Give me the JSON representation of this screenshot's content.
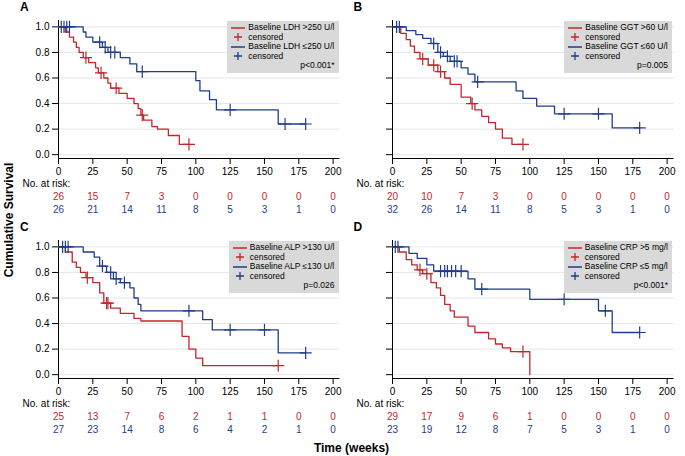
{
  "y_label": "Cumulative Survival",
  "x_label": "Time (weeks)",
  "chart_data": [
    {
      "type": "step",
      "panel": "A",
      "annotation": "p<0.001*",
      "legend": "top-right",
      "grid": true,
      "xlim": [
        0,
        205
      ],
      "xticks": [
        0,
        25,
        50,
        75,
        100,
        125,
        150,
        175,
        200
      ],
      "ylim": [
        -0.03,
        1.05
      ],
      "yticks": [
        {
          "value": 0,
          "label": "0.0"
        },
        {
          "value": 0.2,
          "label": "0.2"
        },
        {
          "value": 0.4,
          "label": "0.4"
        },
        {
          "value": 0.6,
          "label": "0.6"
        },
        {
          "value": 0.8,
          "label": "0.8"
        },
        {
          "value": 1,
          "label": "1.0"
        }
      ],
      "at_risk": {
        "label": "No. at risk:",
        "x": [
          0,
          25,
          50,
          75,
          100,
          125,
          150,
          175,
          200
        ]
      },
      "series": [
        {
          "name": "Baseline LDH >250 U/l",
          "color": "#c1272d",
          "x": [
            0,
            5,
            8,
            11,
            13,
            15,
            18,
            22,
            27,
            29,
            33,
            36,
            38,
            44,
            50,
            55,
            58,
            60,
            62,
            68,
            72,
            80,
            88,
            95
          ],
          "values": [
            1,
            0.96,
            0.92,
            0.88,
            0.84,
            0.8,
            0.76,
            0.72,
            0.68,
            0.64,
            0.6,
            0.56,
            0.52,
            0.48,
            0.44,
            0.4,
            0.36,
            0.31,
            0.27,
            0.22,
            0.2,
            0.15,
            0.08,
            0.08
          ],
          "at_risk": [
            26,
            15,
            7,
            3,
            0,
            0,
            0,
            0,
            0
          ],
          "censored": {
            "name": "censored",
            "marker": "plus",
            "x": [
              20,
              31,
              42,
              61,
              95
            ],
            "values": [
              0.76,
              0.64,
              0.52,
              0.31,
              0.08
            ]
          }
        },
        {
          "name": "Baseline LDH ≤250 U/l",
          "color": "#1f3d8c",
          "x": [
            0,
            18,
            20,
            25,
            32,
            36,
            45,
            52,
            57,
            100,
            103,
            110,
            115,
            160,
            180
          ],
          "values": [
            1,
            0.96,
            0.92,
            0.88,
            0.84,
            0.8,
            0.76,
            0.71,
            0.65,
            0.58,
            0.5,
            0.43,
            0.35,
            0.24,
            0.24
          ],
          "at_risk": [
            26,
            21,
            14,
            11,
            8,
            5,
            3,
            1,
            0
          ],
          "censored": {
            "name": "censored",
            "marker": "plus",
            "x": [
              2,
              4,
              6,
              8,
              30,
              34,
              38,
              41,
              61,
              125,
              165,
              180
            ],
            "values": [
              1,
              1,
              1,
              1,
              0.88,
              0.84,
              0.8,
              0.8,
              0.65,
              0.35,
              0.24,
              0.24
            ]
          }
        }
      ]
    },
    {
      "type": "step",
      "panel": "B",
      "annotation": "p=0.005",
      "legend": "top-right",
      "grid": true,
      "tick_labels": "x",
      "xlim": [
        0,
        205
      ],
      "xticks": [
        0,
        25,
        50,
        75,
        100,
        125,
        150,
        175,
        200
      ],
      "ylim": [
        -0.03,
        1.05
      ],
      "yticks": [
        {
          "value": 0,
          "label": "0.0"
        },
        {
          "value": 0.2,
          "label": "0.2"
        },
        {
          "value": 0.4,
          "label": "0.4"
        },
        {
          "value": 0.6,
          "label": "0.6"
        },
        {
          "value": 0.8,
          "label": "0.8"
        },
        {
          "value": 1,
          "label": "1.0"
        }
      ],
      "at_risk": {
        "label": "No. at risk:",
        "x": [
          0,
          25,
          50,
          75,
          100,
          125,
          150,
          175,
          200
        ]
      },
      "series": [
        {
          "name": "Baseline GGT >60 U/l",
          "color": "#c1272d",
          "x": [
            0,
            6,
            10,
            13,
            16,
            20,
            26,
            33,
            38,
            42,
            50,
            57,
            60,
            65,
            70,
            75,
            80,
            87,
            95
          ],
          "values": [
            1,
            0.95,
            0.9,
            0.85,
            0.8,
            0.75,
            0.7,
            0.65,
            0.6,
            0.55,
            0.45,
            0.4,
            0.35,
            0.3,
            0.25,
            0.2,
            0.13,
            0.08,
            0.08
          ],
          "at_risk": [
            20,
            10,
            7,
            3,
            0,
            0,
            0,
            0,
            0
          ],
          "censored": {
            "name": "censored",
            "marker": "plus",
            "x": [
              22,
              30,
              35,
              58,
              95
            ],
            "values": [
              0.75,
              0.7,
              0.65,
              0.4,
              0.08
            ]
          }
        },
        {
          "name": "Baseline GGT ≤60 U/l",
          "color": "#1f3d8c",
          "x": [
            0,
            10,
            17,
            22,
            28,
            33,
            37,
            42,
            50,
            55,
            60,
            90,
            95,
            105,
            118,
            160,
            180
          ],
          "values": [
            1,
            0.97,
            0.94,
            0.91,
            0.87,
            0.8,
            0.77,
            0.73,
            0.68,
            0.63,
            0.57,
            0.5,
            0.44,
            0.38,
            0.32,
            0.21,
            0.21
          ],
          "at_risk": [
            32,
            26,
            14,
            11,
            8,
            5,
            3,
            1,
            0
          ],
          "censored": {
            "name": "censored",
            "marker": "plus",
            "x": [
              3,
              5,
              30,
              35,
              40,
              45,
              47,
              62,
              125,
              150,
              180
            ],
            "values": [
              1,
              1,
              0.87,
              0.8,
              0.77,
              0.73,
              0.73,
              0.57,
              0.32,
              0.32,
              0.21
            ]
          }
        }
      ]
    },
    {
      "type": "step",
      "panel": "C",
      "annotation": "p=0.026",
      "legend": "top-right",
      "grid": true,
      "xlim": [
        0,
        205
      ],
      "xticks": [
        0,
        25,
        50,
        75,
        100,
        125,
        150,
        175,
        200
      ],
      "ylim": [
        -0.03,
        1.05
      ],
      "yticks": [
        {
          "value": 0,
          "label": "0.0"
        },
        {
          "value": 0.2,
          "label": "0.2"
        },
        {
          "value": 0.4,
          "label": "0.4"
        },
        {
          "value": 0.6,
          "label": "0.6"
        },
        {
          "value": 0.8,
          "label": "0.8"
        },
        {
          "value": 1,
          "label": "1.0"
        }
      ],
      "at_risk": {
        "label": "No. at risk:",
        "x": [
          0,
          25,
          50,
          75,
          100,
          125,
          150,
          175,
          200
        ]
      },
      "series": [
        {
          "name": "Baseline ALP >130 U/l",
          "color": "#c1272d",
          "x": [
            0,
            5,
            10,
            13,
            16,
            20,
            25,
            30,
            33,
            38,
            45,
            55,
            60,
            90,
            95,
            100,
            105,
            160
          ],
          "values": [
            1,
            0.96,
            0.88,
            0.84,
            0.8,
            0.76,
            0.72,
            0.64,
            0.56,
            0.52,
            0.48,
            0.44,
            0.42,
            0.3,
            0.2,
            0.13,
            0.07,
            0.07
          ],
          "at_risk": [
            25,
            13,
            7,
            6,
            2,
            1,
            1,
            0,
            0
          ],
          "censored": {
            "name": "censored",
            "marker": "plus",
            "x": [
              21,
              35,
              36,
              160
            ],
            "values": [
              0.76,
              0.56,
              0.56,
              0.07
            ]
          }
        },
        {
          "name": "Baseline ALP ≤130 U/l",
          "color": "#1f3d8c",
          "x": [
            0,
            18,
            26,
            30,
            35,
            40,
            45,
            52,
            55,
            58,
            60,
            105,
            112,
            160,
            180
          ],
          "values": [
            1,
            0.96,
            0.92,
            0.85,
            0.8,
            0.75,
            0.72,
            0.68,
            0.6,
            0.55,
            0.5,
            0.43,
            0.35,
            0.17,
            0.17
          ],
          "at_risk": [
            27,
            23,
            14,
            8,
            6,
            4,
            2,
            1,
            0
          ],
          "censored": {
            "name": "censored",
            "marker": "plus",
            "x": [
              3,
              5,
              7,
              32,
              38,
              42,
              48,
              95,
              125,
              150,
              180
            ],
            "values": [
              1,
              1,
              1,
              0.85,
              0.8,
              0.75,
              0.72,
              0.5,
              0.35,
              0.35,
              0.17
            ]
          }
        }
      ]
    },
    {
      "type": "step",
      "panel": "D",
      "annotation": "p<0.001*",
      "legend": "top-right",
      "grid": true,
      "tick_labels": "x",
      "xlim": [
        0,
        205
      ],
      "xticks": [
        0,
        25,
        50,
        75,
        100,
        125,
        150,
        175,
        200
      ],
      "ylim": [
        -0.03,
        1.05
      ],
      "yticks": [
        {
          "value": 0,
          "label": "0.0"
        },
        {
          "value": 0.2,
          "label": "0.2"
        },
        {
          "value": 0.4,
          "label": "0.4"
        },
        {
          "value": 0.6,
          "label": "0.6"
        },
        {
          "value": 0.8,
          "label": "0.8"
        },
        {
          "value": 1,
          "label": "1.0"
        }
      ],
      "at_risk": {
        "label": "No. at risk:",
        "x": [
          0,
          25,
          50,
          75,
          100,
          125,
          150,
          175,
          200
        ]
      },
      "series": [
        {
          "name": "Baseline CRP >5 mg/l",
          "color": "#c1272d",
          "x": [
            0,
            5,
            10,
            14,
            18,
            22,
            28,
            32,
            35,
            38,
            42,
            45,
            55,
            60,
            70,
            75,
            80,
            86,
            100
          ],
          "values": [
            1,
            0.96,
            0.9,
            0.86,
            0.82,
            0.79,
            0.72,
            0.68,
            0.62,
            0.55,
            0.5,
            0.45,
            0.38,
            0.33,
            0.28,
            0.24,
            0.21,
            0.18,
            0
          ],
          "at_risk": [
            29,
            17,
            9,
            6,
            1,
            0,
            0,
            0,
            0
          ],
          "censored": {
            "name": "censored",
            "marker": "plus",
            "x": [
              20,
              25,
              95
            ],
            "values": [
              0.82,
              0.79,
              0.18
            ]
          }
        },
        {
          "name": "Baseline CRP ≤5 mg/l",
          "color": "#1f3d8c",
          "x": [
            0,
            12,
            18,
            25,
            30,
            55,
            60,
            100,
            150,
            160,
            180
          ],
          "values": [
            1,
            0.95,
            0.91,
            0.86,
            0.81,
            0.75,
            0.67,
            0.59,
            0.5,
            0.33,
            0.33
          ],
          "at_risk": [
            23,
            19,
            12,
            8,
            7,
            5,
            3,
            1,
            0
          ],
          "censored": {
            "name": "censored",
            "marker": "plus",
            "x": [
              2,
              4,
              35,
              38,
              40,
              43,
              46,
              50,
              65,
              125,
              155,
              180
            ],
            "values": [
              1,
              1,
              0.81,
              0.81,
              0.81,
              0.81,
              0.81,
              0.81,
              0.67,
              0.59,
              0.5,
              0.33
            ]
          }
        }
      ]
    }
  ]
}
